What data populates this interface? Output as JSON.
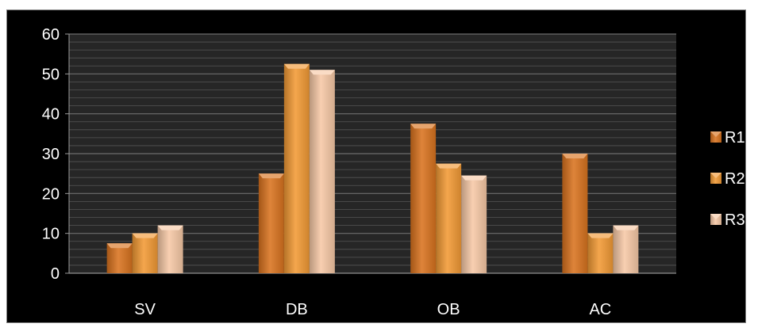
{
  "chart_data": {
    "type": "bar",
    "title": "",
    "xlabel": "",
    "ylabel": "",
    "categories": [
      "SV",
      "DB",
      "OB",
      "AC"
    ],
    "series": [
      {
        "name": "R1",
        "values": [
          7.5,
          25,
          37.5,
          30
        ]
      },
      {
        "name": "R2",
        "values": [
          10,
          52.5,
          27.5,
          10
        ]
      },
      {
        "name": "R3",
        "values": [
          12,
          51,
          24.5,
          12
        ]
      }
    ],
    "ylim": [
      0,
      60
    ],
    "yticks": [
      "0",
      "10",
      "20",
      "30",
      "40",
      "50",
      "60"
    ],
    "grid": true,
    "legend_position": "right",
    "colors": {
      "R1": "#d9731f",
      "R2": "#f29a35",
      "R3": "#f7c9a6",
      "plot_background": "#262626",
      "gridline": "#555555",
      "axis_text": "#ffffff",
      "frame_background": "#000000"
    }
  }
}
